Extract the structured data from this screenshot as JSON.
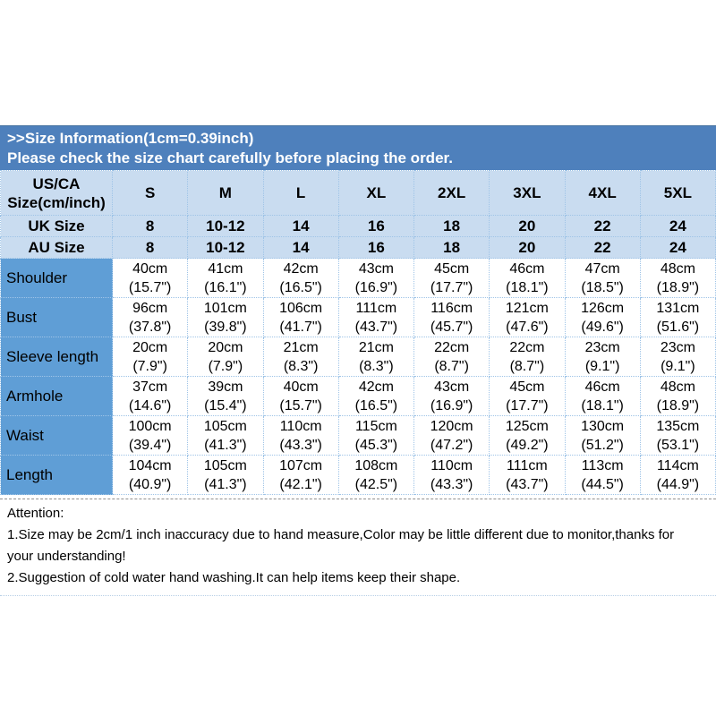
{
  "header": {
    "line1": ">>Size Information(1cm=0.39inch)",
    "line2": "Please check the size chart carefully before placing the order."
  },
  "chart_data": {
    "type": "table",
    "title": ">>Size Information(1cm=0.39inch)",
    "columns": [
      "US/CA Size(cm/inch)",
      "S",
      "M",
      "L",
      "XL",
      "2XL",
      "3XL",
      "4XL",
      "5XL"
    ],
    "rows": [
      [
        "UK Size",
        "8",
        "10-12",
        "14",
        "16",
        "18",
        "20",
        "22",
        "24"
      ],
      [
        "AU Size",
        "8",
        "10-12",
        "14",
        "16",
        "18",
        "20",
        "22",
        "24"
      ],
      [
        "Shoulder",
        "40cm\n(15.7\")",
        "41cm\n(16.1\")",
        "42cm\n(16.5\")",
        "43cm\n(16.9\")",
        "45cm\n(17.7\")",
        "46cm\n(18.1\")",
        "47cm\n(18.5\")",
        "48cm\n(18.9\")"
      ],
      [
        "Bust",
        "96cm\n(37.8\")",
        "101cm\n(39.8\")",
        "106cm\n(41.7\")",
        "111cm\n(43.7\")",
        "116cm\n(45.7\")",
        "121cm\n(47.6\")",
        "126cm\n(49.6\")",
        "131cm\n(51.6\")"
      ],
      [
        "Sleeve length",
        "20cm\n(7.9\")",
        "20cm\n(7.9\")",
        "21cm\n(8.3\")",
        "21cm\n(8.3\")",
        "22cm\n(8.7\")",
        "22cm\n(8.7\")",
        "23cm\n(9.1\")",
        "23cm\n(9.1\")"
      ],
      [
        "Armhole",
        "37cm\n(14.6\")",
        "39cm\n(15.4\")",
        "40cm\n(15.7\")",
        "42cm\n(16.5\")",
        "43cm\n(16.9\")",
        "45cm\n(17.7\")",
        "46cm\n(18.1\")",
        "48cm\n(18.9\")"
      ],
      [
        "Waist",
        "100cm\n(39.4\")",
        "105cm\n(41.3\")",
        "110cm\n(43.3\")",
        "115cm\n(45.3\")",
        "120cm\n(47.2\")",
        "125cm\n(49.2\")",
        "130cm\n(51.2\")",
        "135cm\n(53.1\")"
      ],
      [
        "Length",
        "104cm\n(40.9\")",
        "105cm\n(41.3\")",
        "107cm\n(42.1\")",
        "108cm\n(42.5\")",
        "110cm\n(43.3\")",
        "111cm\n(43.7\")",
        "113cm\n(44.5\")",
        "114cm\n(44.9\")"
      ]
    ]
  },
  "attention": {
    "lines": [
      "Attention:",
      "1.Size may be 2cm/1 inch inaccuracy due to hand measure,Color may be little different due to monitor,thanks for",
      "your understanding!",
      "2.Suggestion of cold water hand washing.It can help items keep their shape."
    ]
  },
  "colors": {
    "band": "#4e80bc",
    "header_cell": "#c9dcf0",
    "label_cell": "#5f9ed6",
    "grid": "#9fc4e7"
  }
}
